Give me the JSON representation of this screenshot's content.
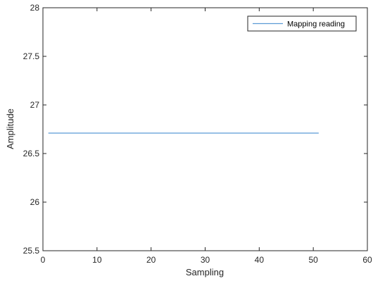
{
  "chart_data": {
    "type": "line",
    "title": "",
    "xlabel": "Sampling",
    "ylabel": "Amplitude",
    "xlim": [
      0,
      60
    ],
    "ylim": [
      25.5,
      28
    ],
    "x_ticks": [
      0,
      10,
      20,
      30,
      40,
      50,
      60
    ],
    "x_tick_labels": [
      "0",
      "10",
      "20",
      "30",
      "40",
      "50",
      "60"
    ],
    "y_ticks": [
      25.5,
      26,
      26.5,
      27,
      27.5,
      28
    ],
    "y_tick_labels": [
      "25.5",
      "26",
      "26.5",
      "27",
      "27.5",
      "28"
    ],
    "grid": false,
    "legend_position": "top-right",
    "series": [
      {
        "name": "Mapping reading",
        "color": "#5b9bd5",
        "x": [
          1,
          51
        ],
        "y": [
          26.71,
          26.71
        ]
      }
    ]
  }
}
